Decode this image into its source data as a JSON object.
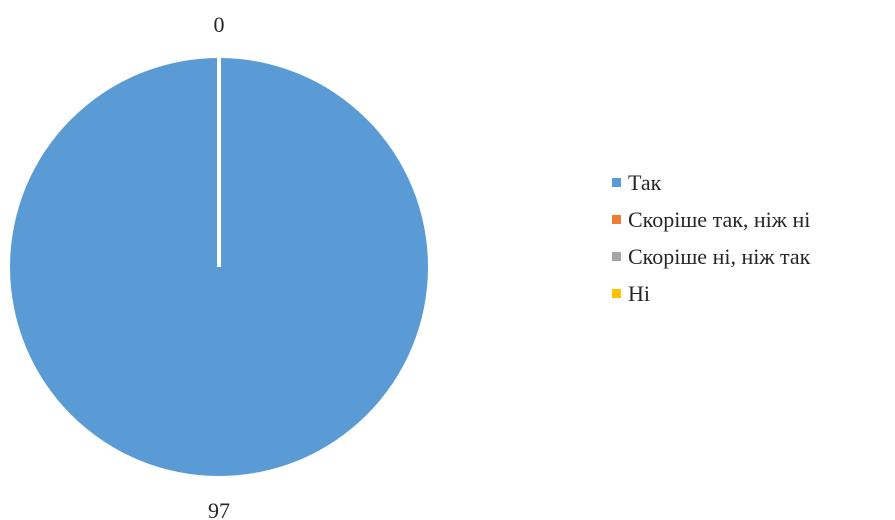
{
  "chart_data": {
    "type": "pie",
    "title": "",
    "categories": [
      "Так",
      "Скоріше так, ніж ні",
      "Скоріше ні, ніж так",
      "Ні"
    ],
    "values": [
      97,
      0,
      0,
      0
    ],
    "data_labels": [
      "97",
      "0",
      "0",
      "0"
    ],
    "colors": [
      "#5b9bd5",
      "#ed7d31",
      "#a5a5a5",
      "#ffc000"
    ],
    "legend_position": "right",
    "start_angle_deg": 0,
    "direction": "clockwise"
  },
  "legend": {
    "items": [
      {
        "label": "Так",
        "color": "#5b9bd5"
      },
      {
        "label": "Скоріше так, ніж ні",
        "color": "#ed7d31"
      },
      {
        "label": "Скоріше ні, ніж так",
        "color": "#a5a5a5"
      },
      {
        "label": "Ні",
        "color": "#ffc000"
      }
    ]
  }
}
